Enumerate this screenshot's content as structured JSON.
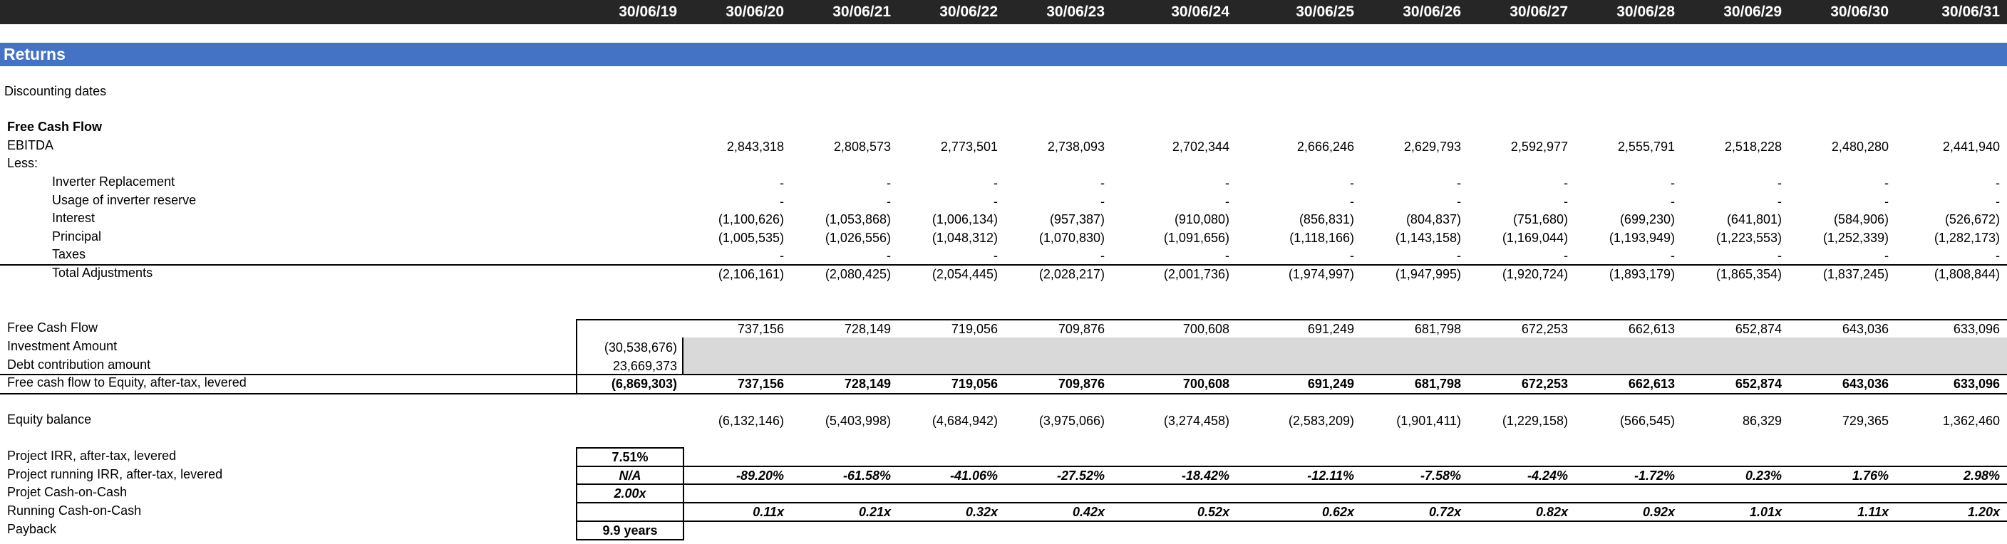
{
  "header": {
    "dates": [
      "30/06/19",
      "30/06/20",
      "30/06/21",
      "30/06/22",
      "30/06/23",
      "30/06/24",
      "30/06/25",
      "30/06/26",
      "30/06/27",
      "30/06/28",
      "30/06/29",
      "30/06/30",
      "30/06/31"
    ]
  },
  "section": {
    "title": "Returns"
  },
  "labels": {
    "discounting_dates": "Discounting dates",
    "fcf_heading": "Free Cash Flow",
    "ebitda": "EBITDA",
    "less": "Less:",
    "inverter_replacement": "Inverter Replacement",
    "usage_inverter_reserve": "Usage of inverter reserve",
    "interest": "Interest",
    "principal": "Principal",
    "taxes": "Taxes",
    "total_adjustments": "Total Adjustments",
    "free_cash_flow": "Free Cash Flow",
    "investment_amount": "Investment Amount",
    "debt_contribution": "Debt contribution amount",
    "fcfe": "Free cash flow to Equity, after-tax, levered",
    "equity_balance": "Equity balance",
    "project_irr": "Project IRR, after-tax, levered",
    "running_irr": "Project running IRR, after-tax, levered",
    "project_coc": "Projet Cash-on-Cash",
    "running_coc": "Running Cash-on-Cash",
    "payback": "Payback"
  },
  "rows": {
    "ebitda": [
      "",
      "2,843,318",
      "2,808,573",
      "2,773,501",
      "2,738,093",
      "2,702,344",
      "2,666,246",
      "2,629,793",
      "2,592,977",
      "2,555,791",
      "2,518,228",
      "2,480,280",
      "2,441,940"
    ],
    "inverter_replacement": [
      "",
      "-",
      "-",
      "-",
      "-",
      "-",
      "-",
      "-",
      "-",
      "-",
      "-",
      "-",
      "-"
    ],
    "usage_inverter_reserve": [
      "",
      "-",
      "-",
      "-",
      "-",
      "-",
      "-",
      "-",
      "-",
      "-",
      "-",
      "-",
      "-"
    ],
    "interest": [
      "",
      "(1,100,626)",
      "(1,053,868)",
      "(1,006,134)",
      "(957,387)",
      "(910,080)",
      "(856,831)",
      "(804,837)",
      "(751,680)",
      "(699,230)",
      "(641,801)",
      "(584,906)",
      "(526,672)"
    ],
    "principal": [
      "",
      "(1,005,535)",
      "(1,026,556)",
      "(1,048,312)",
      "(1,070,830)",
      "(1,091,656)",
      "(1,118,166)",
      "(1,143,158)",
      "(1,169,044)",
      "(1,193,949)",
      "(1,223,553)",
      "(1,252,339)",
      "(1,282,173)"
    ],
    "taxes": [
      "",
      "-",
      "-",
      "-",
      "-",
      "-",
      "-",
      "-",
      "-",
      "-",
      "-",
      "-",
      "-"
    ],
    "total_adjustments": [
      "",
      "(2,106,161)",
      "(2,080,425)",
      "(2,054,445)",
      "(2,028,217)",
      "(2,001,736)",
      "(1,974,997)",
      "(1,947,995)",
      "(1,920,724)",
      "(1,893,179)",
      "(1,865,354)",
      "(1,837,245)",
      "(1,808,844)"
    ],
    "free_cash_flow": [
      "",
      "737,156",
      "728,149",
      "719,056",
      "709,876",
      "700,608",
      "691,249",
      "681,798",
      "672,253",
      "662,613",
      "652,874",
      "643,036",
      "633,096"
    ],
    "investment_amount": [
      "(30,538,676)"
    ],
    "debt_contribution": [
      "23,669,373"
    ],
    "fcfe": [
      "(6,869,303)",
      "737,156",
      "728,149",
      "719,056",
      "709,876",
      "700,608",
      "691,249",
      "681,798",
      "672,253",
      "662,613",
      "652,874",
      "643,036",
      "633,096"
    ],
    "equity_balance": [
      "",
      "(6,132,146)",
      "(5,403,998)",
      "(4,684,942)",
      "(3,975,066)",
      "(3,274,458)",
      "(2,583,209)",
      "(1,901,411)",
      "(1,229,158)",
      "(566,545)",
      "86,329",
      "729,365",
      "1,362,460"
    ],
    "project_irr": [
      "7.51%"
    ],
    "running_irr": [
      "N/A",
      "-89.20%",
      "-61.58%",
      "-41.06%",
      "-27.52%",
      "-18.42%",
      "-12.11%",
      "-7.58%",
      "-4.24%",
      "-1.72%",
      "0.23%",
      "1.76%",
      "2.98%"
    ],
    "project_coc": [
      "2.00x"
    ],
    "running_coc": [
      "",
      "0.11x",
      "0.21x",
      "0.32x",
      "0.42x",
      "0.52x",
      "0.62x",
      "0.72x",
      "0.82x",
      "0.92x",
      "1.01x",
      "1.11x",
      "1.20x"
    ],
    "payback": [
      "9.9 years"
    ]
  }
}
